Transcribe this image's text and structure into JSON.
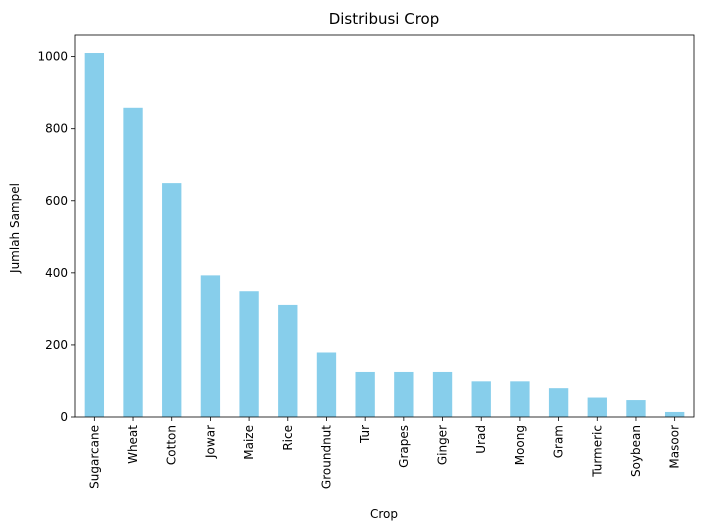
{
  "chart_data": {
    "type": "bar",
    "title": "Distribusi Crop",
    "xlabel": "Crop",
    "ylabel": "Jumlah Sampel",
    "categories": [
      "Sugarcane",
      "Wheat",
      "Cotton",
      "Jowar",
      "Maize",
      "Rice",
      "Groundnut",
      "Tur",
      "Grapes",
      "Ginger",
      "Urad",
      "Moong",
      "Gram",
      "Turmeric",
      "Soybean",
      "Masoor"
    ],
    "values": [
      1010,
      858,
      649,
      393,
      349,
      311,
      179,
      125,
      125,
      125,
      99,
      99,
      80,
      54,
      47,
      14
    ],
    "ylim": [
      0,
      1060
    ],
    "yticks": [
      0,
      200,
      400,
      600,
      800,
      1000
    ],
    "bar_color": "#87CEEB",
    "grid": false,
    "legend": false
  }
}
